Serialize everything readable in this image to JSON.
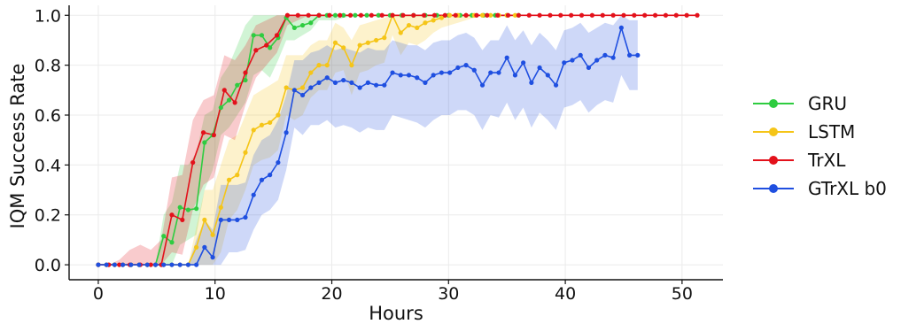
{
  "chart_data": {
    "type": "line",
    "xlabel": "Hours",
    "ylabel": "IQM Success Rate",
    "xlim": [
      -2.5,
      53.5
    ],
    "ylim": [
      -0.06,
      1.04
    ],
    "xticks": [
      0,
      10,
      20,
      30,
      40,
      50
    ],
    "yticks": [
      0.0,
      0.2,
      0.4,
      0.6,
      0.8,
      1.0
    ],
    "xtick_labels": [
      "0",
      "10",
      "20",
      "30",
      "40",
      "50"
    ],
    "ytick_labels": [
      "0.0",
      "0.2",
      "0.4",
      "0.6",
      "0.8",
      "1.0"
    ],
    "grid": true,
    "legend_position": "right",
    "series": [
      {
        "name": "GRU",
        "color": "#2ecc40",
        "x": [
          0,
          0.7,
          1.4,
          2.1,
          2.8,
          3.5,
          4.2,
          4.9,
          5.6,
          6.3,
          7,
          7.7,
          8.4,
          9.1,
          9.8,
          10.5,
          11.2,
          11.9,
          12.6,
          13.3,
          14,
          14.7,
          15.4,
          16.1,
          16.8,
          17.5,
          18.2,
          18.9,
          19.6,
          20.3,
          21,
          22,
          23,
          24,
          25,
          26,
          27,
          28,
          29,
          30,
          31,
          32,
          33,
          34,
          35,
          36
        ],
        "y": [
          0,
          0,
          0,
          0,
          0,
          0,
          0,
          0,
          0.115,
          0.09,
          0.23,
          0.22,
          0.225,
          0.49,
          0.52,
          0.63,
          0.66,
          0.72,
          0.74,
          0.92,
          0.92,
          0.87,
          0.91,
          0.99,
          0.95,
          0.96,
          0.97,
          1,
          1,
          1,
          1,
          1,
          1,
          1,
          1,
          1,
          1,
          1,
          1,
          1,
          1,
          1,
          1,
          1,
          1,
          1
        ],
        "lower": [
          0,
          0,
          0,
          0,
          0,
          0,
          0,
          0,
          0,
          0,
          0.08,
          0.1,
          0.12,
          0.3,
          0.38,
          0.52,
          0.55,
          0.6,
          0.65,
          0.76,
          0.78,
          0.75,
          0.82,
          0.9,
          0.9,
          0.92,
          0.94,
          0.98,
          0.98,
          0.98,
          0.99,
          1,
          1,
          1,
          1,
          1,
          1,
          1,
          1,
          1,
          1,
          1,
          1,
          1,
          1,
          1
        ],
        "upper": [
          0,
          0,
          0,
          0,
          0,
          0,
          0,
          0,
          0.2,
          0.25,
          0.4,
          0.4,
          0.45,
          0.6,
          0.62,
          0.75,
          0.8,
          0.88,
          0.96,
          1,
          1,
          1,
          1,
          1,
          1,
          1,
          1,
          1,
          1,
          1,
          1,
          1,
          1,
          1,
          1,
          1,
          1,
          1,
          1,
          1,
          1,
          1,
          1,
          1,
          1,
          1
        ]
      },
      {
        "name": "LSTM",
        "color": "#f5c518",
        "x": [
          0,
          0.7,
          1.4,
          2.1,
          2.8,
          3.5,
          4.2,
          4.9,
          5.6,
          6.3,
          7,
          7.7,
          8.4,
          9.1,
          9.8,
          10.5,
          11.2,
          11.9,
          12.6,
          13.3,
          14,
          14.7,
          15.4,
          16.1,
          16.8,
          17.5,
          18.2,
          18.9,
          19.6,
          20.3,
          21,
          21.7,
          22.4,
          23.1,
          23.8,
          24.5,
          25.2,
          25.9,
          26.6,
          27.3,
          28,
          28.7,
          29.4,
          30.1,
          30.8,
          31.5,
          32.2,
          32.9,
          33.6,
          34.3,
          35,
          35.7
        ],
        "y": [
          0,
          0,
          0,
          0,
          0,
          0,
          0,
          0,
          0,
          0,
          0,
          0,
          0.07,
          0.18,
          0.12,
          0.23,
          0.34,
          0.36,
          0.45,
          0.54,
          0.56,
          0.57,
          0.6,
          0.71,
          0.7,
          0.71,
          0.77,
          0.8,
          0.8,
          0.89,
          0.87,
          0.8,
          0.88,
          0.89,
          0.9,
          0.91,
          1,
          0.93,
          0.96,
          0.95,
          0.97,
          0.98,
          0.99,
          1,
          1,
          1,
          1,
          1,
          1,
          1,
          1,
          1
        ],
        "lower": [
          0,
          0,
          0,
          0,
          0,
          0,
          0,
          0,
          0,
          0,
          0,
          0,
          0,
          0,
          0,
          0.05,
          0.18,
          0.22,
          0.3,
          0.4,
          0.42,
          0.43,
          0.46,
          0.6,
          0.58,
          0.6,
          0.67,
          0.7,
          0.7,
          0.77,
          0.78,
          0.68,
          0.77,
          0.78,
          0.8,
          0.81,
          0.92,
          0.84,
          0.89,
          0.88,
          0.9,
          0.93,
          0.95,
          0.96,
          0.97,
          0.98,
          0.99,
          1,
          1,
          1,
          1,
          1
        ],
        "upper": [
          0,
          0,
          0,
          0,
          0,
          0,
          0,
          0,
          0,
          0,
          0,
          0,
          0.15,
          0.3,
          0.3,
          0.4,
          0.5,
          0.52,
          0.6,
          0.68,
          0.7,
          0.72,
          0.74,
          0.84,
          0.84,
          0.84,
          0.88,
          0.9,
          0.9,
          0.97,
          0.95,
          0.9,
          0.96,
          0.97,
          0.98,
          0.99,
          1,
          1,
          1,
          1,
          1,
          1,
          1,
          1,
          1,
          1,
          1,
          1,
          1,
          1,
          1,
          1
        ]
      },
      {
        "name": "TrXL",
        "color": "#e3111b",
        "x": [
          0,
          0.9,
          1.8,
          2.7,
          3.6,
          4.5,
          5.4,
          6.3,
          7.2,
          8.1,
          9,
          9.9,
          10.8,
          11.7,
          12.6,
          13.5,
          14.4,
          15.3,
          16.2,
          17.1,
          18,
          18.9,
          19.8,
          20.7,
          21.6,
          22.5,
          23.4,
          24.3,
          25.2,
          26.1,
          27,
          27.9,
          28.8,
          29.7,
          30.6,
          31.5,
          32.4,
          33.3,
          34.2,
          35.1,
          36,
          36.9,
          37.8,
          38.7,
          39.6,
          40.5,
          41.4,
          42.3,
          43.2,
          44.1,
          45,
          45.9,
          46.8,
          47.7,
          48.6,
          49.5,
          50.4,
          51.3
        ],
        "y": [
          0,
          0,
          0,
          0,
          0,
          0,
          0,
          0.2,
          0.18,
          0.41,
          0.53,
          0.52,
          0.7,
          0.65,
          0.77,
          0.86,
          0.88,
          0.92,
          1,
          1,
          1,
          1,
          1,
          1,
          1,
          1,
          1,
          1,
          1,
          1,
          1,
          1,
          1,
          1,
          1,
          1,
          1,
          1,
          1,
          1,
          1,
          1,
          1,
          1,
          1,
          1,
          1,
          1,
          1,
          1,
          1,
          1,
          1,
          1,
          1,
          1,
          1,
          1
        ],
        "lower": [
          0,
          0,
          0,
          0,
          0,
          0,
          0,
          0.05,
          0.04,
          0.22,
          0.32,
          0.35,
          0.52,
          0.5,
          0.64,
          0.75,
          0.8,
          0.85,
          0.96,
          0.98,
          1,
          1,
          1,
          1,
          1,
          1,
          1,
          1,
          1,
          1,
          1,
          1,
          1,
          1,
          1,
          1,
          1,
          1,
          1,
          1,
          1,
          1,
          1,
          1,
          1,
          1,
          1,
          1,
          1,
          1,
          1,
          1,
          1,
          1,
          1,
          1,
          1,
          1
        ],
        "upper": [
          0,
          0,
          0.02,
          0.06,
          0.08,
          0.06,
          0.1,
          0.35,
          0.36,
          0.58,
          0.66,
          0.68,
          0.84,
          0.82,
          0.88,
          0.96,
          0.98,
          1,
          1,
          1,
          1,
          1,
          1,
          1,
          1,
          1,
          1,
          1,
          1,
          1,
          1,
          1,
          1,
          1,
          1,
          1,
          1,
          1,
          1,
          1,
          1,
          1,
          1,
          1,
          1,
          1,
          1,
          1,
          1,
          1,
          1,
          1,
          1,
          1,
          1,
          1,
          1,
          1
        ]
      },
      {
        "name": "GTrXL b0",
        "color": "#1f4fe0",
        "x": [
          0,
          0.7,
          1.4,
          2.1,
          2.8,
          3.5,
          4.2,
          4.9,
          5.6,
          6.3,
          7,
          7.7,
          8.4,
          9.1,
          9.8,
          10.5,
          11.2,
          11.9,
          12.6,
          13.3,
          14,
          14.7,
          15.4,
          16.1,
          16.8,
          17.5,
          18.2,
          18.9,
          19.6,
          20.3,
          21,
          21.7,
          22.4,
          23.1,
          23.8,
          24.5,
          25.2,
          25.9,
          26.6,
          27.3,
          28,
          28.7,
          29.4,
          30.1,
          30.8,
          31.5,
          32.2,
          32.9,
          33.6,
          34.3,
          35,
          35.7,
          36.4,
          37.1,
          37.8,
          38.5,
          39.2,
          39.9,
          40.6,
          41.3,
          42,
          42.7,
          43.4,
          44.1,
          44.8,
          45.5,
          46.2
        ],
        "y": [
          0,
          0,
          0,
          0,
          0,
          0,
          0,
          0,
          0,
          0,
          0,
          0,
          0,
          0.07,
          0.03,
          0.18,
          0.18,
          0.18,
          0.19,
          0.28,
          0.34,
          0.36,
          0.41,
          0.53,
          0.7,
          0.68,
          0.71,
          0.73,
          0.75,
          0.73,
          0.74,
          0.73,
          0.71,
          0.73,
          0.72,
          0.72,
          0.77,
          0.76,
          0.76,
          0.75,
          0.73,
          0.76,
          0.77,
          0.77,
          0.79,
          0.8,
          0.78,
          0.72,
          0.77,
          0.77,
          0.83,
          0.76,
          0.81,
          0.73,
          0.79,
          0.76,
          0.72,
          0.81,
          0.82,
          0.84,
          0.79,
          0.82,
          0.84,
          0.83,
          0.95,
          0.84,
          0.84
        ],
        "lower": [
          0,
          0,
          0,
          0,
          0,
          0,
          0,
          0,
          0,
          0,
          0,
          0,
          0,
          0,
          0,
          0,
          0.05,
          0.05,
          0.06,
          0.14,
          0.2,
          0.22,
          0.26,
          0.38,
          0.55,
          0.52,
          0.56,
          0.56,
          0.58,
          0.55,
          0.56,
          0.55,
          0.53,
          0.55,
          0.54,
          0.54,
          0.6,
          0.59,
          0.58,
          0.57,
          0.55,
          0.58,
          0.6,
          0.6,
          0.62,
          0.62,
          0.6,
          0.54,
          0.6,
          0.59,
          0.65,
          0.58,
          0.63,
          0.55,
          0.61,
          0.58,
          0.54,
          0.63,
          0.64,
          0.66,
          0.61,
          0.64,
          0.66,
          0.65,
          0.76,
          0.7,
          0.7
        ],
        "upper": [
          0,
          0,
          0,
          0,
          0,
          0,
          0,
          0,
          0,
          0,
          0,
          0,
          0.1,
          0.18,
          0.14,
          0.32,
          0.32,
          0.32,
          0.33,
          0.44,
          0.5,
          0.52,
          0.58,
          0.68,
          0.82,
          0.82,
          0.85,
          0.86,
          0.88,
          0.86,
          0.87,
          0.86,
          0.85,
          0.87,
          0.86,
          0.86,
          0.9,
          0.89,
          0.88,
          0.88,
          0.86,
          0.89,
          0.9,
          0.9,
          0.92,
          0.93,
          0.91,
          0.86,
          0.9,
          0.9,
          0.96,
          0.9,
          0.94,
          0.88,
          0.93,
          0.9,
          0.86,
          0.94,
          0.95,
          0.97,
          0.93,
          0.95,
          0.97,
          0.96,
          1,
          0.98,
          0.98
        ]
      }
    ]
  }
}
